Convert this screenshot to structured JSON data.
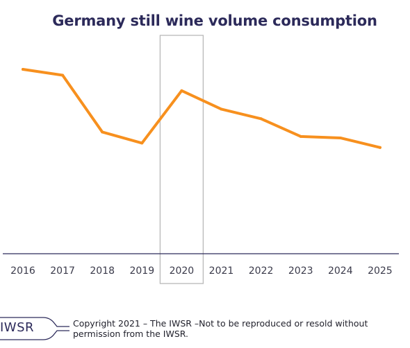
{
  "chart_data": {
    "type": "line",
    "title": "Germany still wine volume consumption",
    "categories": [
      "2016",
      "2017",
      "2018",
      "2019",
      "2020",
      "2021",
      "2022",
      "2023",
      "2024",
      "2025"
    ],
    "series": [
      {
        "values": [
          100,
          96.8,
          66.0,
          60.0,
          88.4,
          78.4,
          73.2,
          63.6,
          62.8,
          57.6
        ]
      }
    ],
    "ylim": [
      0,
      106
    ],
    "highlight_category": "2020",
    "line_color": "#f7901e",
    "axis_color": "#2c2a5a",
    "grid": false,
    "legend": "none"
  },
  "footer": {
    "logo": "IWSR",
    "copyright_line1": "Copyright 2021 – The IWSR –Not to be reproduced or resold without",
    "copyright_line2": "permission from the IWSR."
  }
}
